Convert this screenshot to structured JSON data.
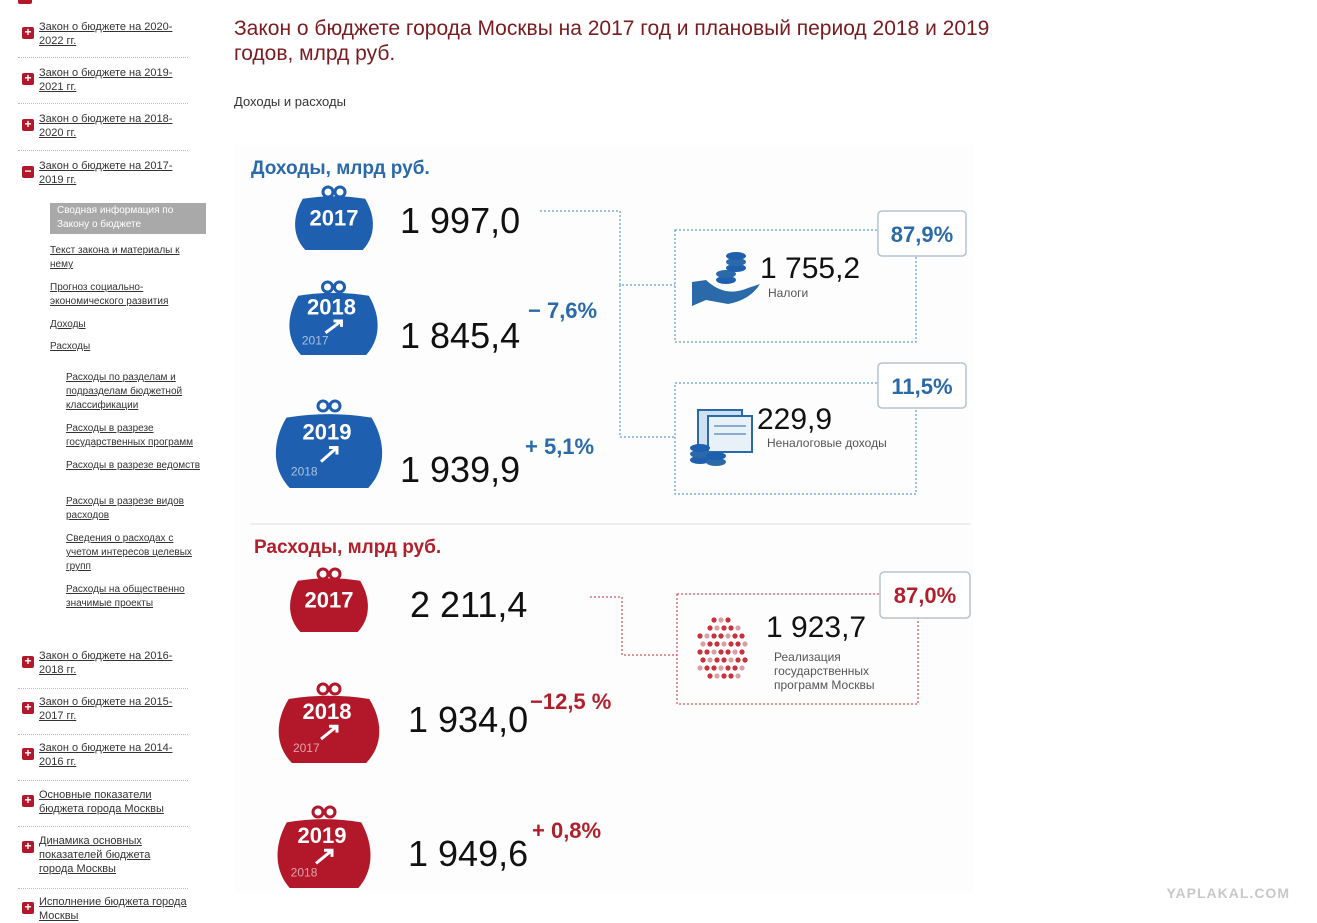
{
  "sidebar": {
    "items": [
      {
        "label": "Закон о бюджете на 2020-2022 гг."
      },
      {
        "label": "Закон о бюджете на 2019-2021 гг."
      },
      {
        "label": "Закон о бюджете на 2018-2020 гг."
      },
      {
        "label": "Закон о бюджете на 2017-2019 гг.",
        "children": [
          {
            "label": "Сводная информация по Закону о бюджете"
          },
          {
            "label": "Текст закона и материалы к нему"
          },
          {
            "label": "Прогноз социально-экономического развития"
          },
          {
            "label": "Доходы"
          },
          {
            "label": "Расходы",
            "children": [
              {
                "label": "Расходы по разделам и подразделам бюджетной классификации"
              },
              {
                "label": "Расходы в разрезе государственных программ"
              },
              {
                "label": "Расходы в разрезе ведомств"
              },
              {
                "label": "Расходы в разрезе видов расходов"
              },
              {
                "label": "Сведения о расходах с учетом интересов целевых групп"
              },
              {
                "label": "Расходы на общественно значимые проекты"
              }
            ]
          }
        ]
      },
      {
        "label": "Закон о бюджете на 2016-2018 гг."
      },
      {
        "label": "Закон о бюджете на 2015-2017 гг."
      },
      {
        "label": "Закон о бюджете на 2014-2016 гг."
      },
      {
        "label": "Основные показатели бюджета города Москвы"
      },
      {
        "label": "Динамика основных показателей бюджета города Москвы"
      },
      {
        "label": "Исполнение бюджета города Москвы"
      }
    ]
  },
  "header": {
    "title": "Закон о бюджете города Москвы на 2017 год и плановый период 2018 и 2019 годов, млрд руб.",
    "subtitle": "Доходы и расходы"
  },
  "infographic": {
    "income": {
      "title": "Доходы, млрд руб.",
      "years": [
        {
          "year": "2017",
          "value": "1 997,0"
        },
        {
          "year": "2018",
          "base": "2017",
          "value": "1 845,4",
          "change": "− 7,6%"
        },
        {
          "year": "2019",
          "base": "2018",
          "value": "1 939,9",
          "change": "+ 5,1%"
        }
      ],
      "parts": [
        {
          "share": "87,9%",
          "value": "1 755,2",
          "label": "Налоги"
        },
        {
          "share": "11,5%",
          "value": "229,9",
          "label": "Неналоговые доходы"
        }
      ]
    },
    "expenses": {
      "title": "Расходы, млрд руб.",
      "years": [
        {
          "year": "2017",
          "value": "2 211,4"
        },
        {
          "year": "2018",
          "base": "2017",
          "value": "1 934,0",
          "change": "−12,5 %"
        },
        {
          "year": "2019",
          "base": "2018",
          "value": "1 949,6",
          "change": "+ 0,8%"
        }
      ],
      "parts": [
        {
          "share": "87,0%",
          "value": "1 923,7",
          "label": "Реализация государственных программ Москвы"
        }
      ]
    }
  },
  "watermark": "YAPLAKAL.COM"
}
